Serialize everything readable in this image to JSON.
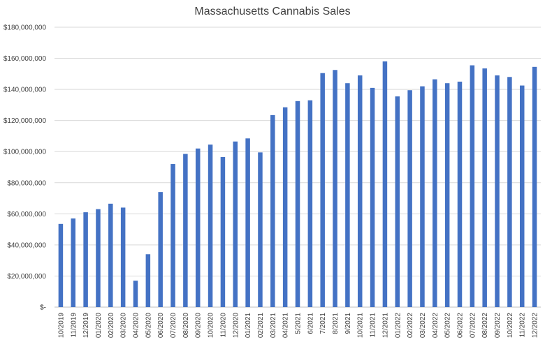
{
  "chart_data": {
    "type": "bar",
    "title": "Massachusetts Cannabis Sales",
    "xlabel": "",
    "ylabel": "",
    "ylim": [
      0,
      180000000
    ],
    "ytick_values": [
      0,
      20000000,
      40000000,
      60000000,
      80000000,
      100000000,
      120000000,
      140000000,
      160000000,
      180000000
    ],
    "ytick_labels": [
      "$-",
      "$20,000,000",
      "$40,000,000",
      "$60,000,000",
      "$80,000,000",
      "$100,000,000",
      "$120,000,000",
      "$140,000,000",
      "$160,000,000",
      "$180,000,000"
    ],
    "grid": true,
    "bar_color": "#4472c4",
    "categories": [
      "10/2019",
      "11/2019",
      "12/2019",
      "01/2020",
      "02/2020",
      "03/2020",
      "04/2020",
      "05/2020",
      "06/2020",
      "07/2020",
      "08/2020",
      "09/2020",
      "10/2020",
      "11/2020",
      "12/2020",
      "01/2021",
      "02/2021",
      "03/2021",
      "04/2021",
      "5/2021",
      "6/2021",
      "7/2021",
      "8/2021",
      "9/2021",
      "10/2021",
      "11/2021",
      "12/2021",
      "01/2022",
      "02/2022",
      "03/2022",
      "04/2022",
      "05/2022",
      "06/2022",
      "07/2022",
      "08/2022",
      "09/2022",
      "10/2022",
      "11/2022",
      "12/2022"
    ],
    "values": [
      53500000,
      57000000,
      61000000,
      63000000,
      66500000,
      64000000,
      17000000,
      34000000,
      74000000,
      92000000,
      98500000,
      102000000,
      104500000,
      96500000,
      106500000,
      108500000,
      99500000,
      123500000,
      128500000,
      132500000,
      133000000,
      150500000,
      152500000,
      144000000,
      149000000,
      141000000,
      158000000,
      135500000,
      139500000,
      142000000,
      146500000,
      144000000,
      145000000,
      155500000,
      153500000,
      149000000,
      148000000,
      142500000,
      154500000
    ]
  }
}
